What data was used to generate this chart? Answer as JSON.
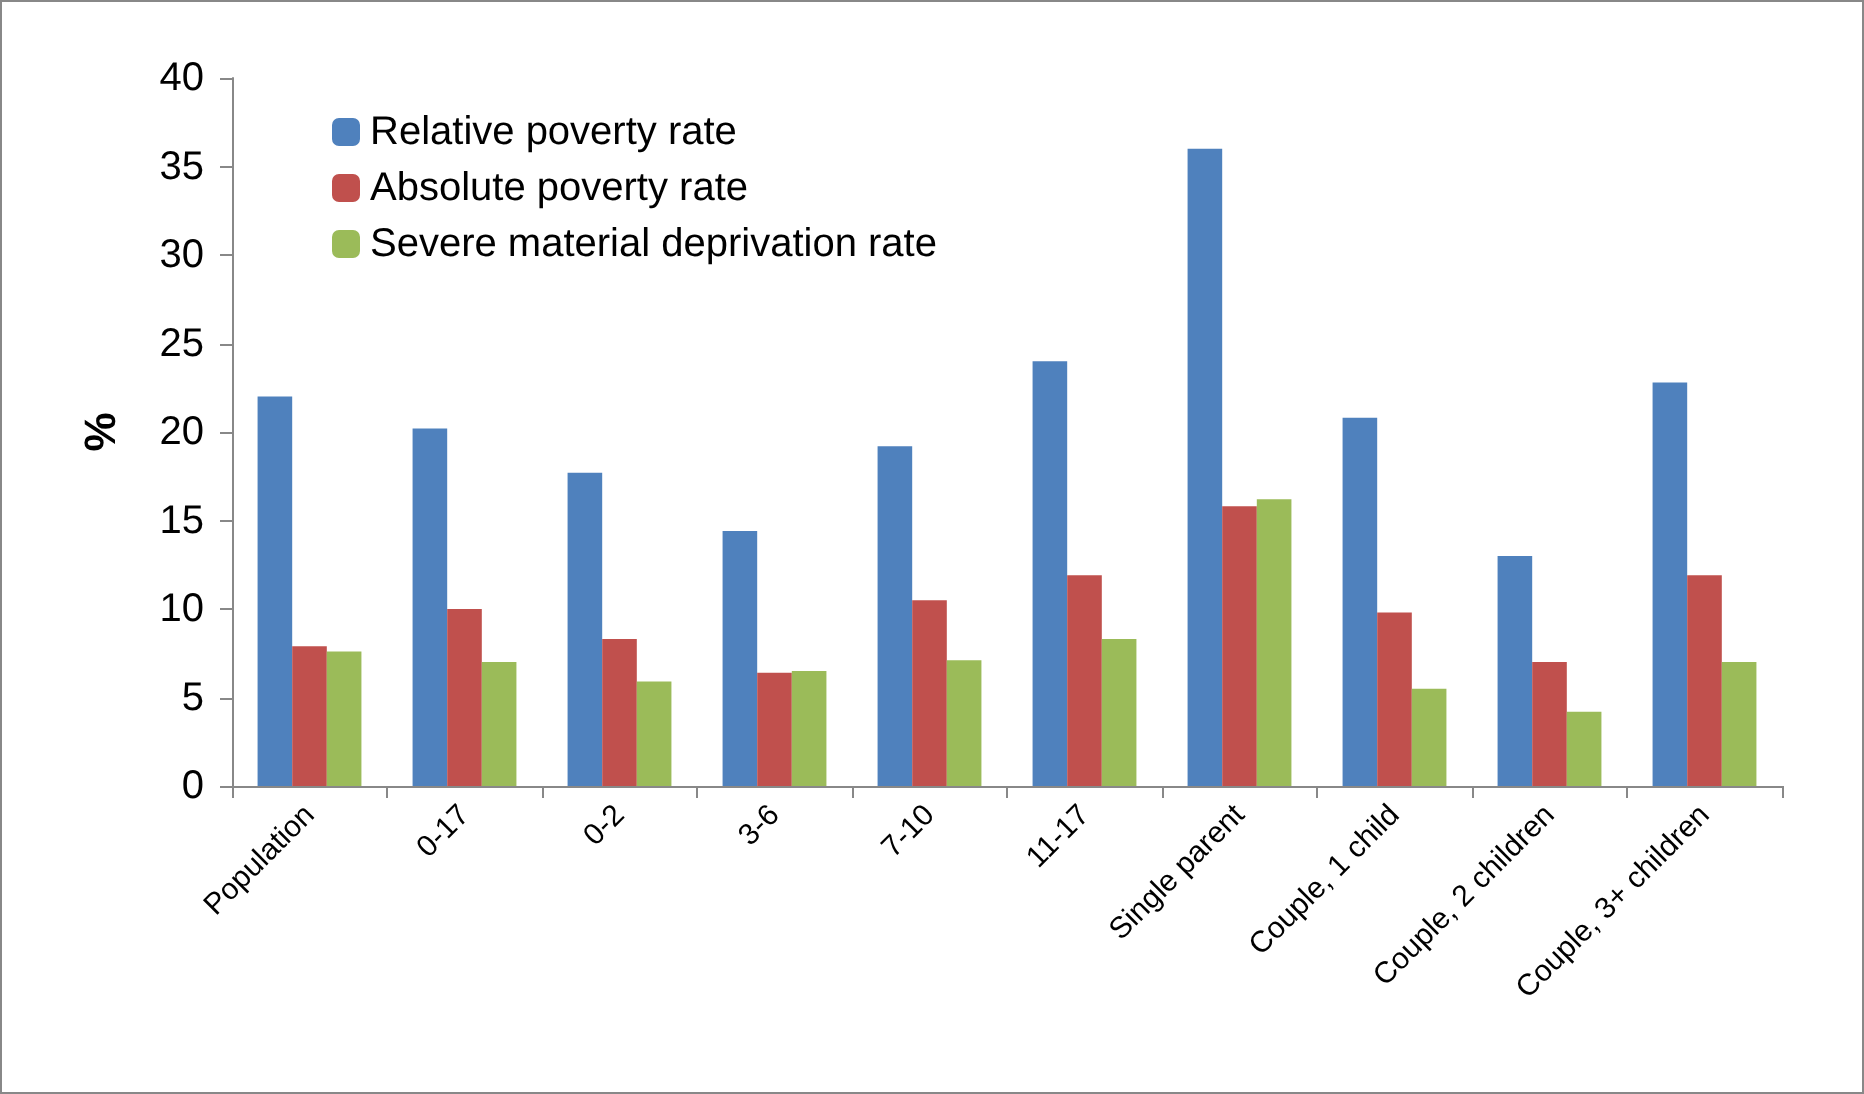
{
  "chart_data": {
    "type": "bar",
    "ylabel": "%",
    "categories": [
      "Population",
      "0-17",
      "0-2",
      "3-6",
      "7-10",
      "11-17",
      "Single parent",
      "Couple, 1 child",
      "Couple, 2 children",
      "Couple, 3+ children"
    ],
    "series": [
      {
        "name": "Relative poverty rate",
        "color": "#4f81bd",
        "values": [
          22.0,
          20.2,
          17.7,
          14.4,
          19.2,
          24.0,
          36.0,
          20.8,
          13.0,
          22.8
        ]
      },
      {
        "name": "Absolute poverty rate",
        "color": "#c0504d",
        "values": [
          7.9,
          10.0,
          8.3,
          6.4,
          10.5,
          11.9,
          15.8,
          9.8,
          7.0,
          11.9
        ]
      },
      {
        "name": "Severe material deprivation rate",
        "color": "#9bbb59",
        "values": [
          7.6,
          7.0,
          5.9,
          6.5,
          7.1,
          8.3,
          16.2,
          5.5,
          4.2,
          7.0
        ]
      }
    ],
    "ylim": [
      0,
      40
    ],
    "yticks": [
      0,
      5,
      10,
      15,
      20,
      25,
      30,
      35,
      40
    ],
    "grid": false,
    "legend": "top left"
  }
}
